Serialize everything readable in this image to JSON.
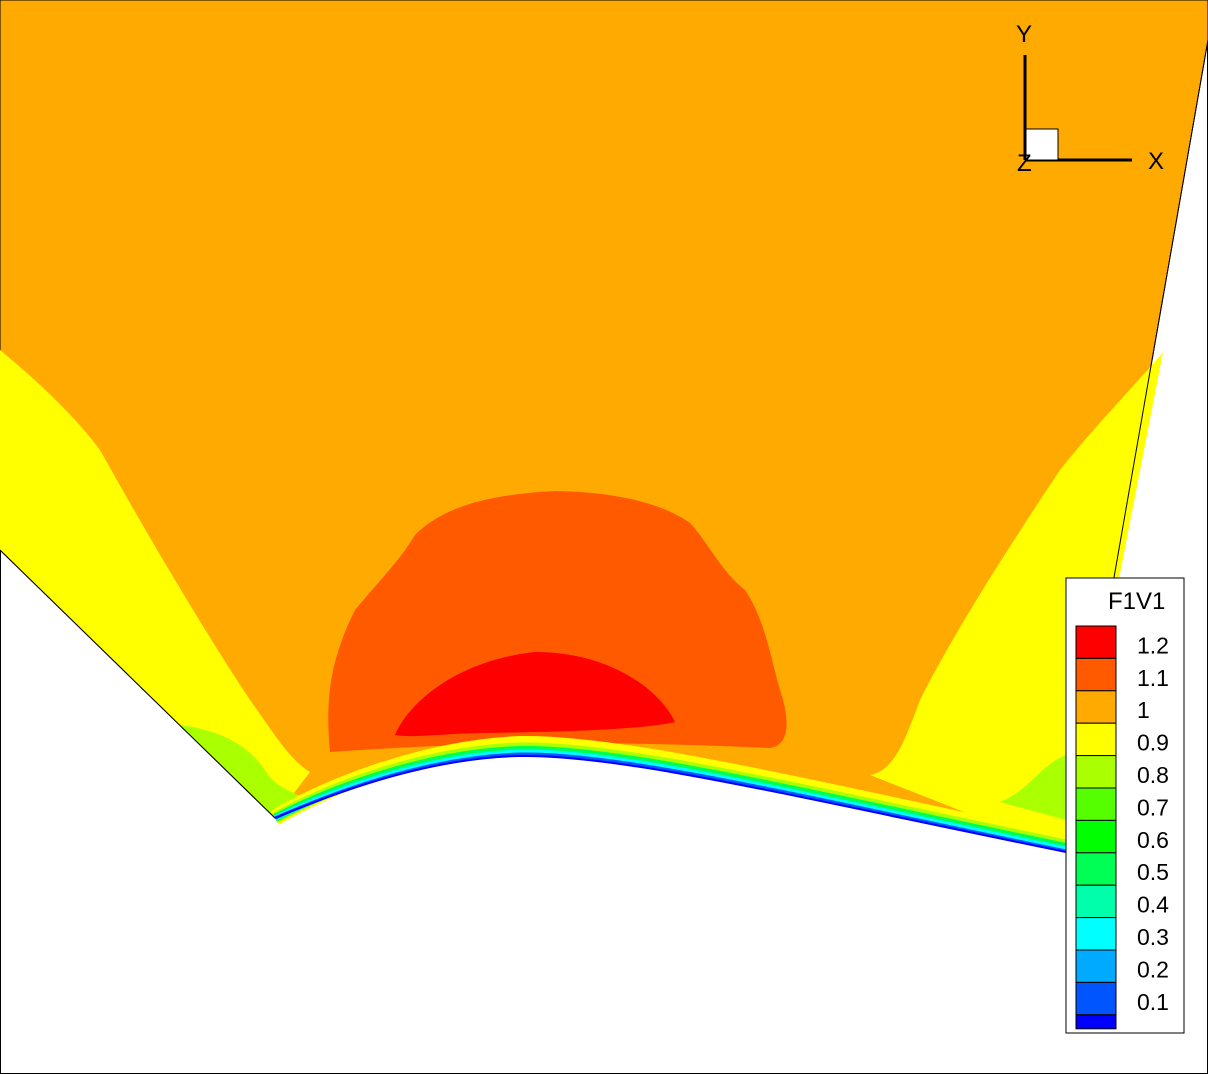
{
  "chart_data": {
    "type": "contour",
    "variable": "F1V1",
    "legend": {
      "title": "F1V1",
      "placement": "right-middle",
      "levels": [
        {
          "label": "1.2",
          "color": "#ff0000"
        },
        {
          "label": "1.1",
          "color": "#ff5a00"
        },
        {
          "label": "1",
          "color": "#ffaa00"
        },
        {
          "label": "0.9",
          "color": "#ffff00"
        },
        {
          "label": "0.8",
          "color": "#aaff00"
        },
        {
          "label": "0.7",
          "color": "#55ff00"
        },
        {
          "label": "0.6",
          "color": "#00ff00"
        },
        {
          "label": "0.5",
          "color": "#00ff55"
        },
        {
          "label": "0.4",
          "color": "#00ffaa"
        },
        {
          "label": "0.3",
          "color": "#00ffff"
        },
        {
          "label": "0.2",
          "color": "#00aaff"
        },
        {
          "label": "0.1",
          "color": "#0055ff"
        }
      ],
      "bottom_color": "#0000ff"
    },
    "axes_triad": {
      "x_label": "X",
      "y_label": "Y",
      "z_label": "Z"
    },
    "regions": [
      {
        "level": "1",
        "description": "freestream"
      },
      {
        "level": "0.9",
        "description": "side bands"
      },
      {
        "level": "1.1",
        "description": "central dome"
      },
      {
        "level": "1.2",
        "description": "peak lens above surface"
      },
      {
        "level": "0.1",
        "description": "thin boundary layer along wall"
      }
    ]
  }
}
